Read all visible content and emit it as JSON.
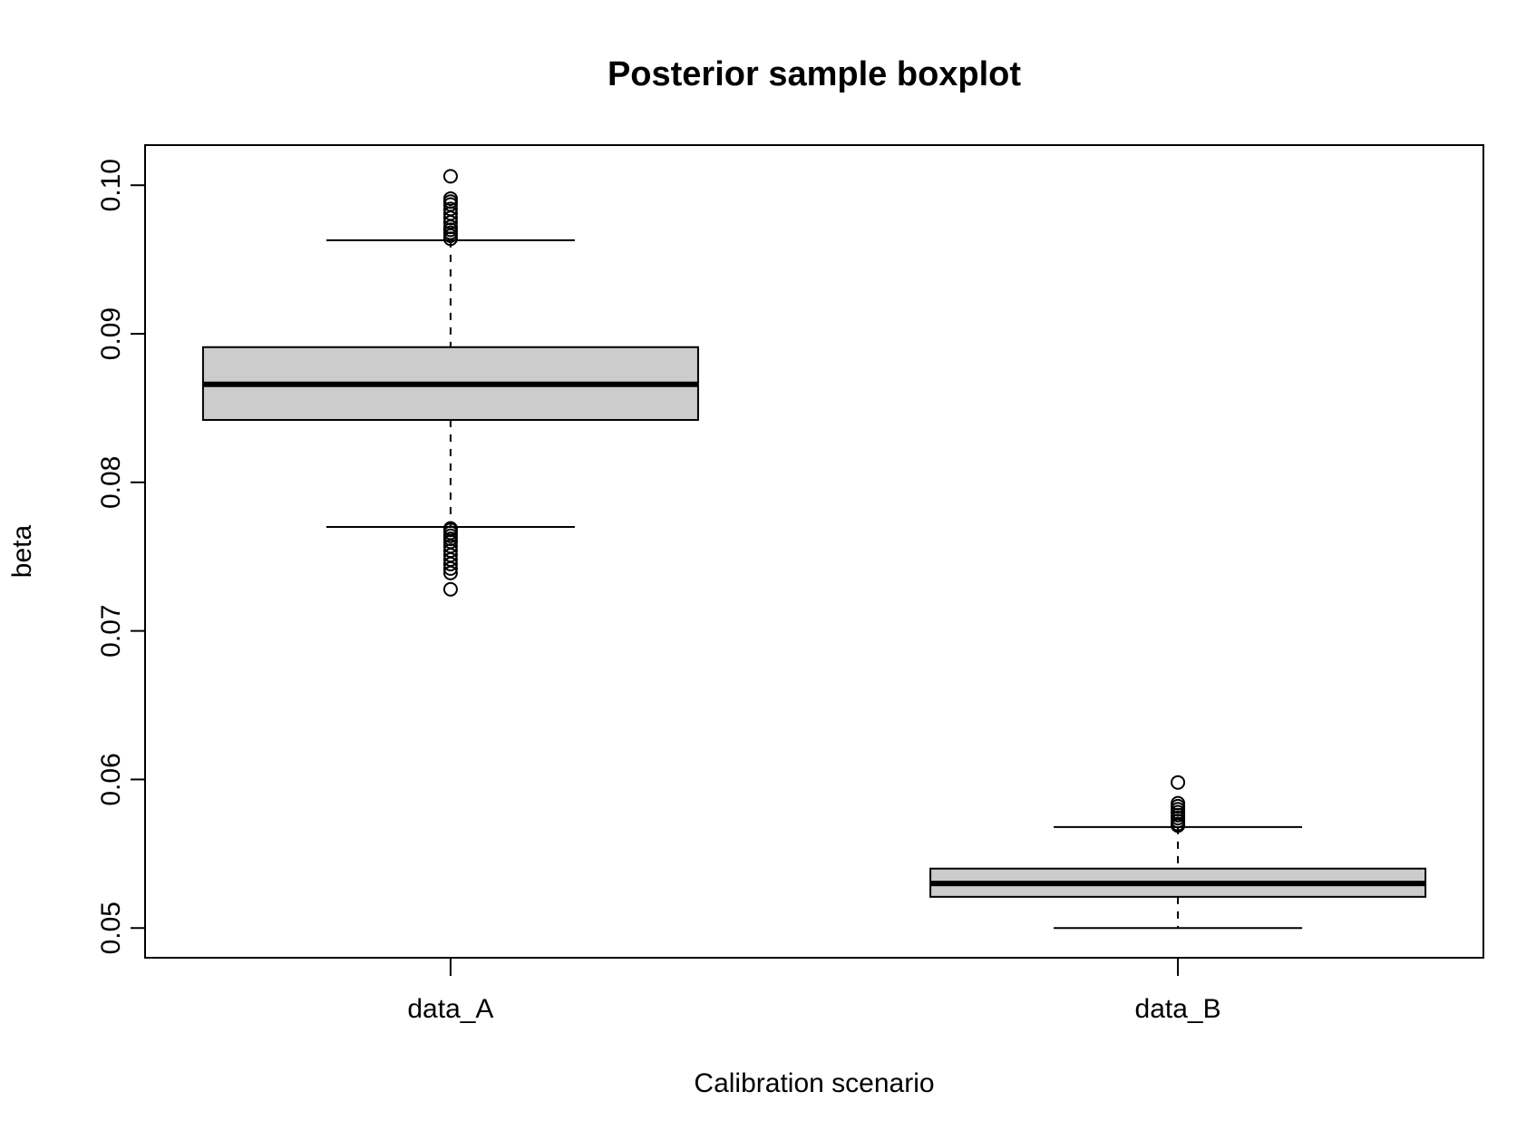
{
  "chart_data": {
    "type": "boxplot",
    "title": "Posterior sample boxplot",
    "xlabel": "Calibration scenario",
    "ylabel": "beta",
    "ylim": [
      0.048,
      0.1027
    ],
    "yticks": [
      0.05,
      0.06,
      0.07,
      0.08,
      0.09,
      0.1
    ],
    "ytick_labels": [
      "0.05",
      "0.06",
      "0.07",
      "0.08",
      "0.09",
      "0.10"
    ],
    "categories": [
      "data_A",
      "data_B"
    ],
    "box_fill": "#cccccc",
    "boxes": [
      {
        "name": "data_A",
        "whisker_low": 0.077,
        "q1": 0.0842,
        "median": 0.0866,
        "q3": 0.0891,
        "whisker_high": 0.0963,
        "outliers": [
          0.0728,
          0.0739,
          0.0742,
          0.0745,
          0.0748,
          0.0751,
          0.0754,
          0.0757,
          0.076,
          0.0762,
          0.0764,
          0.0766,
          0.0768,
          0.0769,
          0.0964,
          0.0966,
          0.0968,
          0.097,
          0.0972,
          0.0975,
          0.0978,
          0.0981,
          0.0984,
          0.0987,
          0.0989,
          0.0991,
          0.1006
        ]
      },
      {
        "name": "data_B",
        "whisker_low": 0.05,
        "q1": 0.0521,
        "median": 0.053,
        "q3": 0.054,
        "whisker_high": 0.0568,
        "outliers": [
          0.0569,
          0.057,
          0.0572,
          0.0574,
          0.0576,
          0.0578,
          0.058,
          0.0582,
          0.0584,
          0.0598
        ]
      }
    ]
  }
}
